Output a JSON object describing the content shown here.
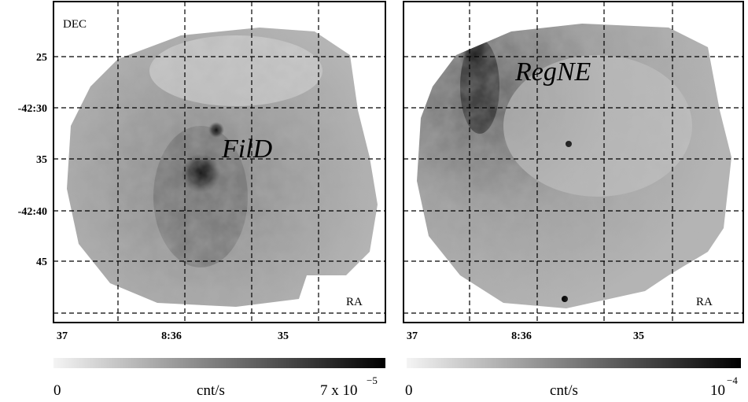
{
  "dec_ticks": [
    "25",
    "-42:30",
    "35",
    "-42:40",
    "45"
  ],
  "panels": [
    {
      "dec_label": "DEC",
      "ra_label": "RA",
      "annotation": "FilD",
      "ra_ticks": [
        "37",
        "8:36",
        "35"
      ],
      "colorbar": {
        "min_label": "0",
        "unit": "cnt/s",
        "max_label": "7 x 10",
        "max_exponent": "−5"
      }
    },
    {
      "ra_label": "RA",
      "annotation": "RegNE",
      "ra_ticks": [
        "37",
        "8:36",
        "35"
      ],
      "colorbar": {
        "min_label": "0",
        "unit": "cnt/s",
        "max_label": "10",
        "max_exponent": "−4"
      }
    }
  ]
}
